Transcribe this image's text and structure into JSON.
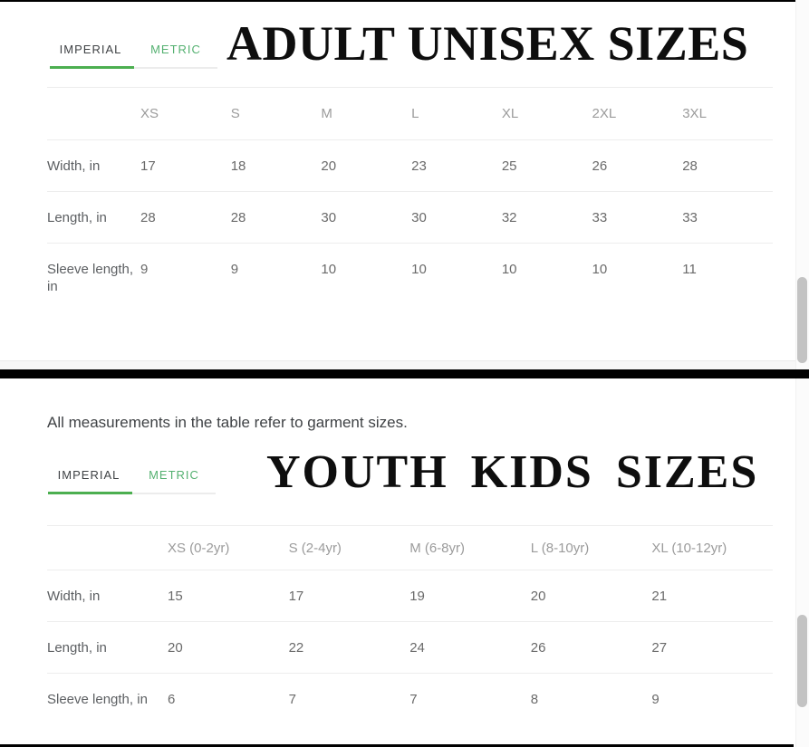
{
  "colors": {
    "accent_green": "#4caf50",
    "metric_text_green": "#55b171",
    "divider_black": "#000000",
    "header_text_gray": "#9b9b9b"
  },
  "tabs": {
    "imperial": "IMPERIAL",
    "metric": "METRIC"
  },
  "note": "All measurements in the table refer to garment sizes.",
  "adult": {
    "title": "ADULT UNISEX SIZES",
    "columns": [
      "XS",
      "S",
      "M",
      "L",
      "XL",
      "2XL",
      "3XL"
    ],
    "rows": [
      {
        "label": "Width, in",
        "values": [
          "17",
          "18",
          "20",
          "23",
          "25",
          "26",
          "28"
        ]
      },
      {
        "label": "Length, in",
        "values": [
          "28",
          "28",
          "30",
          "30",
          "32",
          "33",
          "33"
        ]
      },
      {
        "label": "Sleeve length, in",
        "values": [
          "9",
          "9",
          "10",
          "10",
          "10",
          "10",
          "11"
        ]
      }
    ]
  },
  "youth": {
    "title": "YOUTH KIDS SIZES",
    "columns": [
      "XS (0-2yr)",
      "S (2-4yr)",
      "M (6-8yr)",
      "L (8-10yr)",
      "XL (10-12yr)"
    ],
    "rows": [
      {
        "label": "Width, in",
        "values": [
          "15",
          "17",
          "19",
          "20",
          "21"
        ]
      },
      {
        "label": "Length, in",
        "values": [
          "20",
          "22",
          "24",
          "26",
          "27"
        ]
      },
      {
        "label": "Sleeve length, in",
        "values": [
          "6",
          "7",
          "7",
          "8",
          "9"
        ]
      }
    ]
  }
}
